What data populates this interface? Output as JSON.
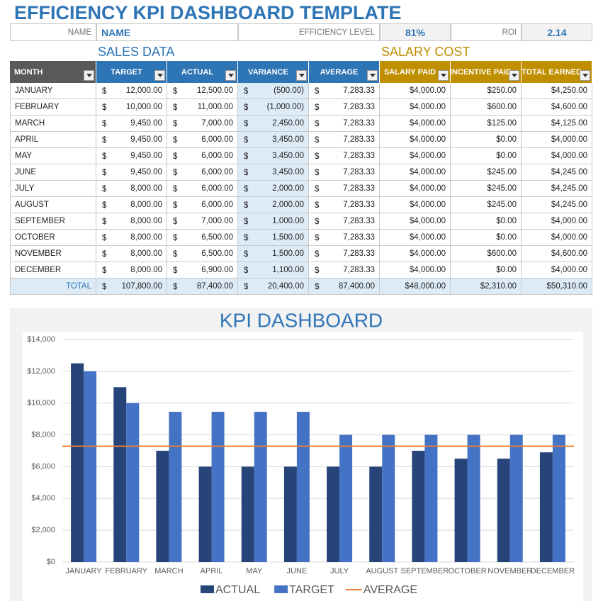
{
  "header": {
    "title": "EFFICIENCY KPI DASHBOARD TEMPLATE",
    "name_label": "NAME",
    "name_value": "NAME",
    "efficiency_label": "EFFICIENCY LEVEL",
    "efficiency_value": "81%",
    "roi_label": "ROI",
    "roi_value": "2.14"
  },
  "sections": {
    "sales": "SALES DATA",
    "salary": "SALARY COST"
  },
  "table": {
    "currency": "$",
    "columns": [
      "MONTH",
      "TARGET",
      "ACTUAL",
      "VARIANCE",
      "AVERAGE",
      "SALARY PAID",
      "INCENTIVE PAID",
      "TOTAL EARNED"
    ],
    "rows": [
      [
        "JANUARY",
        "12,000.00",
        "12,500.00",
        "(500.00)",
        "7,283.33",
        "$4,000.00",
        "$250.00",
        "$4,250.00"
      ],
      [
        "FEBRUARY",
        "10,000.00",
        "11,000.00",
        "(1,000.00)",
        "7,283.33",
        "$4,000.00",
        "$600.00",
        "$4,600.00"
      ],
      [
        "MARCH",
        "9,450.00",
        "7,000.00",
        "2,450.00",
        "7,283.33",
        "$4,000.00",
        "$125.00",
        "$4,125.00"
      ],
      [
        "APRIL",
        "9,450.00",
        "6,000.00",
        "3,450.00",
        "7,283.33",
        "$4,000.00",
        "$0.00",
        "$4,000.00"
      ],
      [
        "MAY",
        "9,450.00",
        "6,000.00",
        "3,450.00",
        "7,283.33",
        "$4,000.00",
        "$0.00",
        "$4,000.00"
      ],
      [
        "JUNE",
        "9,450.00",
        "6,000.00",
        "3,450.00",
        "7,283.33",
        "$4,000.00",
        "$245.00",
        "$4,245.00"
      ],
      [
        "JULY",
        "8,000.00",
        "6,000.00",
        "2,000.00",
        "7,283.33",
        "$4,000.00",
        "$245.00",
        "$4,245.00"
      ],
      [
        "AUGUST",
        "8,000.00",
        "6,000.00",
        "2,000.00",
        "7,283.33",
        "$4,000.00",
        "$245.00",
        "$4,245.00"
      ],
      [
        "SEPTEMBER",
        "8,000.00",
        "7,000.00",
        "1,000.00",
        "7,283.33",
        "$4,000.00",
        "$0.00",
        "$4,000.00"
      ],
      [
        "OCTOBER",
        "8,000.00",
        "6,500.00",
        "1,500.00",
        "7,283.33",
        "$4,000.00",
        "$0.00",
        "$4,000.00"
      ],
      [
        "NOVEMBER",
        "8,000.00",
        "6,500.00",
        "1,500.00",
        "7,283.33",
        "$4,000.00",
        "$600.00",
        "$4,600.00"
      ],
      [
        "DECEMBER",
        "8,000.00",
        "6,900.00",
        "1,100.00",
        "7,283.33",
        "$4,000.00",
        "$0.00",
        "$4,000.00"
      ]
    ],
    "total": [
      "TOTAL",
      "107,800.00",
      "87,400.00",
      "20,400.00",
      "87,400.00",
      "$48,000.00",
      "$2,310.00",
      "$50,310.00"
    ]
  },
  "chart_data": {
    "type": "bar",
    "title": "KPI DASHBOARD",
    "categories": [
      "JANUARY",
      "FEBRUARY",
      "MARCH",
      "APRIL",
      "MAY",
      "JUNE",
      "JULY",
      "AUGUST",
      "SEPTEMBER",
      "OCTOBER",
      "NOVEMBER",
      "DECEMBER"
    ],
    "series": [
      {
        "name": "ACTUAL",
        "type": "bar",
        "color": "#264478",
        "values": [
          12500,
          11000,
          7000,
          6000,
          6000,
          6000,
          6000,
          6000,
          7000,
          6500,
          6500,
          6900
        ]
      },
      {
        "name": "TARGET",
        "type": "bar",
        "color": "#4472c4",
        "values": [
          12000,
          10000,
          9450,
          9450,
          9450,
          9450,
          8000,
          8000,
          8000,
          8000,
          8000,
          8000
        ]
      },
      {
        "name": "AVERAGE",
        "type": "line",
        "color": "#ed7d31",
        "values": [
          7283.33,
          7283.33,
          7283.33,
          7283.33,
          7283.33,
          7283.33,
          7283.33,
          7283.33,
          7283.33,
          7283.33,
          7283.33,
          7283.33
        ]
      }
    ],
    "ylim": [
      0,
      14000
    ],
    "yticks": [
      {
        "value": 0,
        "label": "$0"
      },
      {
        "value": 2000,
        "label": "$2,000"
      },
      {
        "value": 4000,
        "label": "$4,000"
      },
      {
        "value": 6000,
        "label": "$6,000"
      },
      {
        "value": 8000,
        "label": "$8,000"
      },
      {
        "value": 10000,
        "label": "$10,000"
      },
      {
        "value": 12000,
        "label": "$12,000"
      },
      {
        "value": 14000,
        "label": "$14,000"
      }
    ],
    "grid": true,
    "legend": "bottom"
  }
}
